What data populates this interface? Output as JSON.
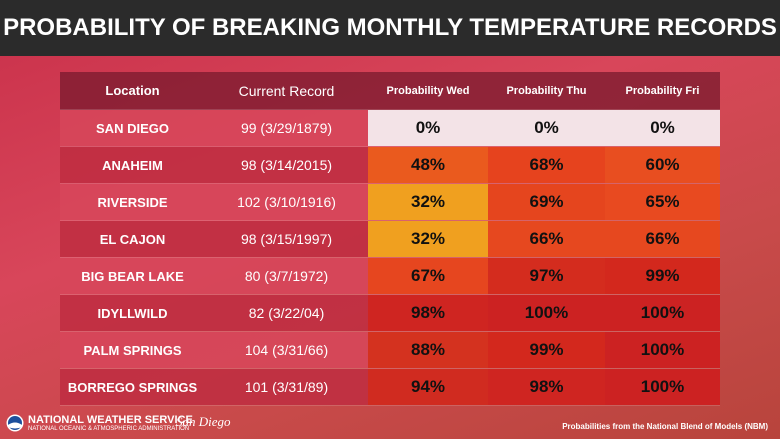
{
  "header": {
    "title": "PROBABILITY OF BREAKING MONTHLY TEMPERATURE RECORDS"
  },
  "table": {
    "columns": [
      "Location",
      "Current Record",
      "Probability Wed",
      "Probability Thu",
      "Probability Fri"
    ],
    "rows": [
      [
        "SAN DIEGO",
        "99 (3/29/1879)",
        "0%",
        "0%",
        "0%"
      ],
      [
        "ANAHEIM",
        "98 (3/14/2015)",
        "48%",
        "68%",
        "60%"
      ],
      [
        "RIVERSIDE",
        "102 (3/10/1916)",
        "32%",
        "69%",
        "65%"
      ],
      [
        "EL CAJON",
        "98 (3/15/1997)",
        "32%",
        "66%",
        "66%"
      ],
      [
        "BIG BEAR LAKE",
        "80 (3/7/1972)",
        "67%",
        "97%",
        "99%"
      ],
      [
        "IDYLLWILD",
        "82 (3/22/04)",
        "98%",
        "100%",
        "100%"
      ],
      [
        "PALM SPRINGS",
        "104 (3/31/66)",
        "88%",
        "99%",
        "100%"
      ],
      [
        "BORREGO SPRINGS",
        "101 (3/31/89)",
        "94%",
        "98%",
        "100%"
      ]
    ],
    "cell_colors": [
      [
        "#f3e3e7",
        "#f3e3e7",
        "#f3e3e7"
      ],
      [
        "#ea5a1e",
        "#e6431e",
        "#e84e20"
      ],
      [
        "#f0a01f",
        "#e5451e",
        "#e84a20"
      ],
      [
        "#f0a01f",
        "#e6481f",
        "#e6481f"
      ],
      [
        "#e6461f",
        "#d42c1e",
        "#d3281d"
      ],
      [
        "#cf2521",
        "#cc2222",
        "#cc2222"
      ],
      [
        "#d4321f",
        "#d3281d",
        "#cc2222"
      ],
      [
        "#d02b20",
        "#cf2521",
        "#cc2222"
      ]
    ]
  },
  "footer": {
    "agency": "NATIONAL WEATHER SERVICE",
    "parent": "NATIONAL OCEANIC & ATMOSPHERIC ADMINISTRATION",
    "office": "San Diego",
    "source": "Probabilities from the National Blend of Models (NBM)"
  }
}
